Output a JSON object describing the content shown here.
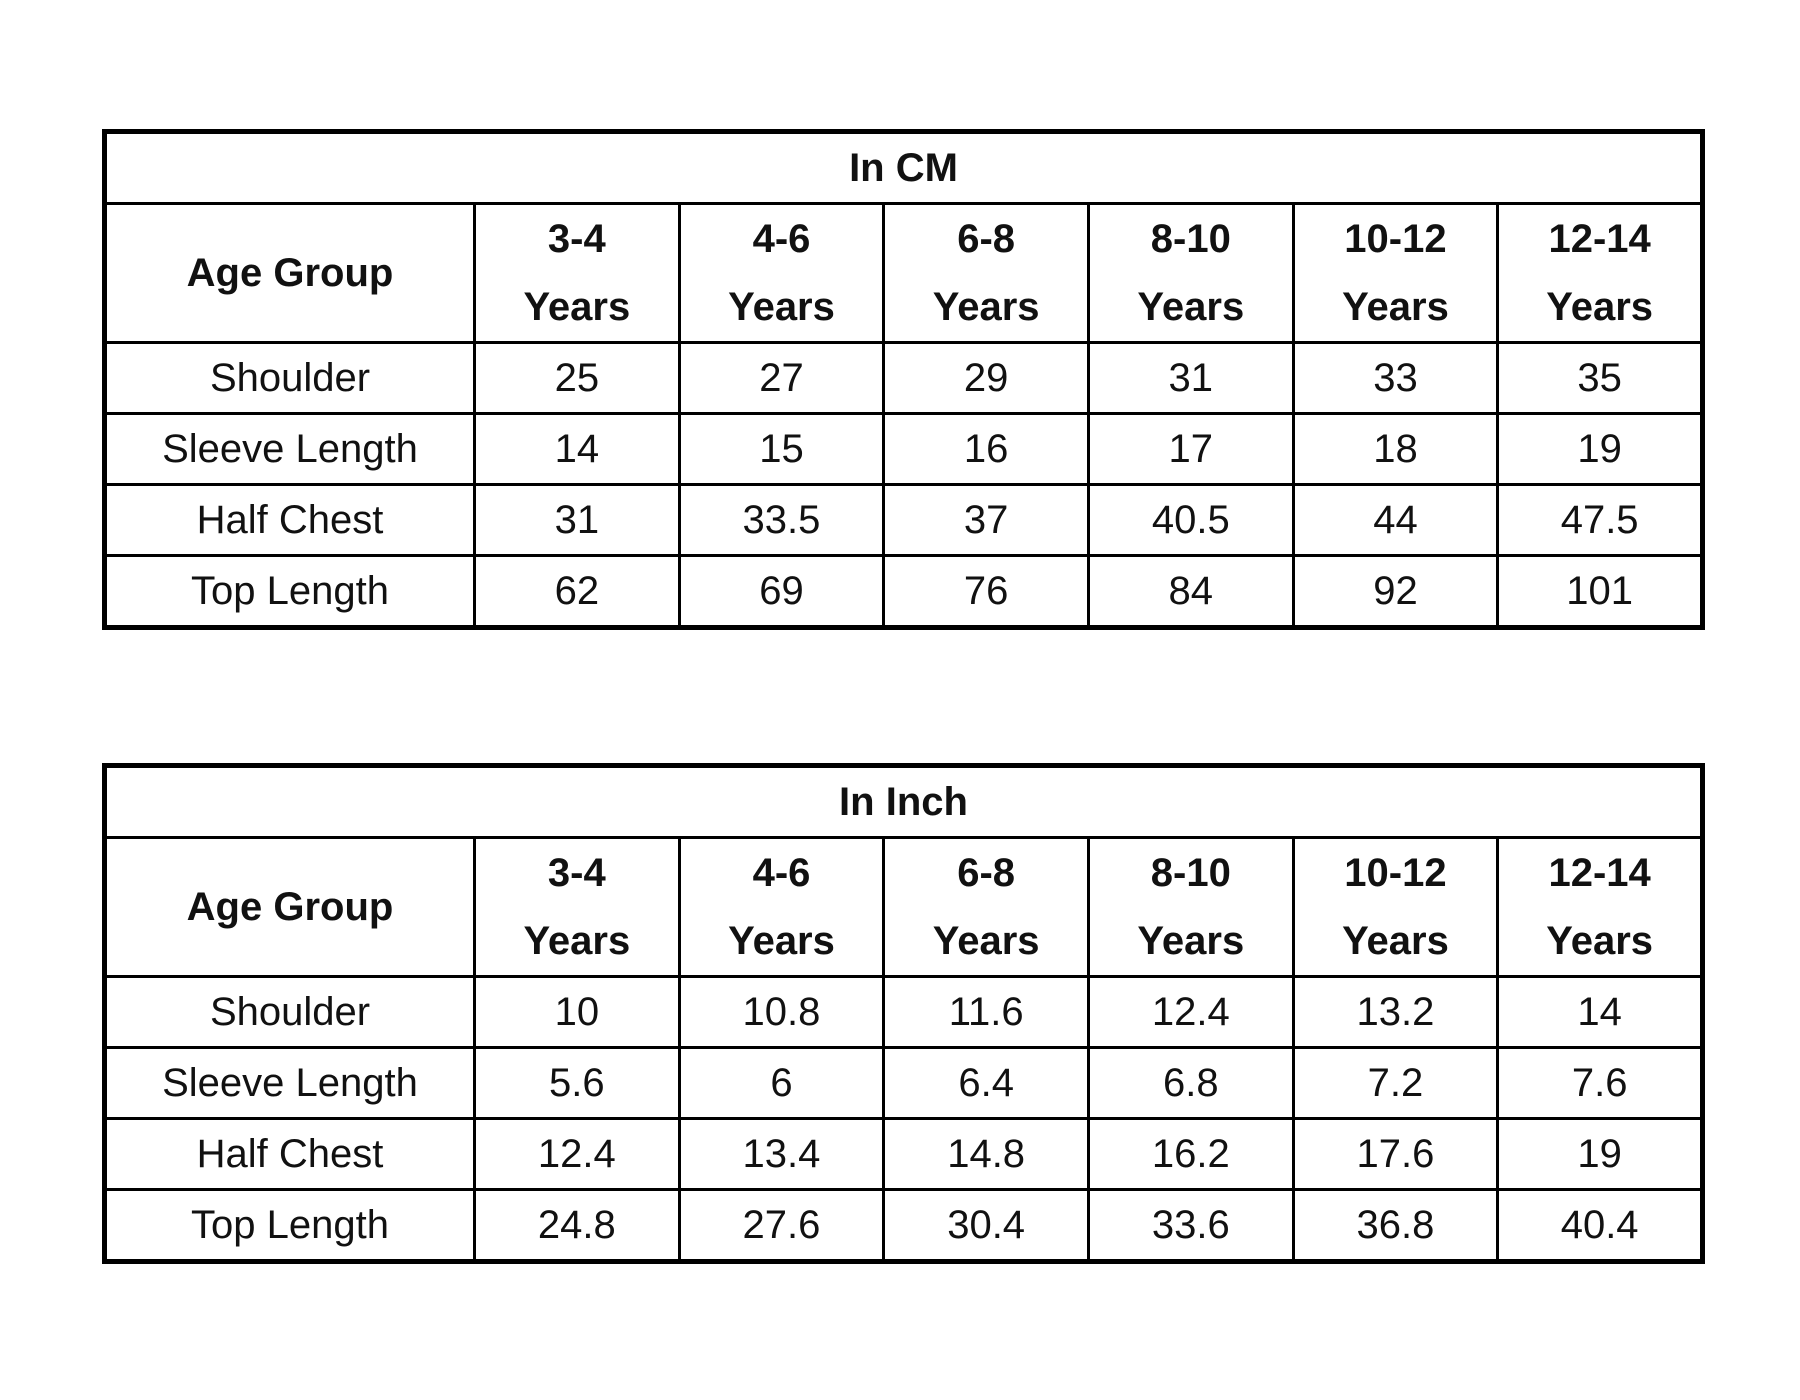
{
  "tables": [
    {
      "title": "In CM",
      "header": [
        "Age Group",
        "3-4\nYears",
        "4-6\nYears",
        "6-8\nYears",
        "8-10\nYears",
        "10-12\nYears",
        "12-14\nYears"
      ],
      "rows": [
        {
          "label": "Shoulder",
          "values": [
            25,
            27,
            29,
            31,
            33,
            35
          ]
        },
        {
          "label": "Sleeve Length",
          "values": [
            14,
            15,
            16,
            17,
            18,
            19
          ]
        },
        {
          "label": "Half Chest",
          "values": [
            31,
            33.5,
            37,
            40.5,
            44,
            47.5
          ]
        },
        {
          "label": "Top Length",
          "values": [
            62,
            69,
            76,
            84,
            92,
            101
          ]
        }
      ]
    },
    {
      "title": "In Inch",
      "header": [
        "Age Group",
        "3-4\nYears",
        "4-6\nYears",
        "6-8\nYears",
        "8-10\nYears",
        "10-12\nYears",
        "12-14\nYears"
      ],
      "rows": [
        {
          "label": "Shoulder",
          "values": [
            10,
            10.8,
            11.6,
            12.4,
            13.2,
            14
          ]
        },
        {
          "label": "Sleeve Length",
          "values": [
            5.6,
            6,
            6.4,
            6.8,
            7.2,
            7.6
          ]
        },
        {
          "label": "Half Chest",
          "values": [
            12.4,
            13.4,
            14.8,
            16.2,
            17.6,
            19
          ]
        },
        {
          "label": "Top Length",
          "values": [
            24.8,
            27.6,
            30.4,
            33.6,
            36.8,
            40.4
          ]
        }
      ]
    }
  ]
}
